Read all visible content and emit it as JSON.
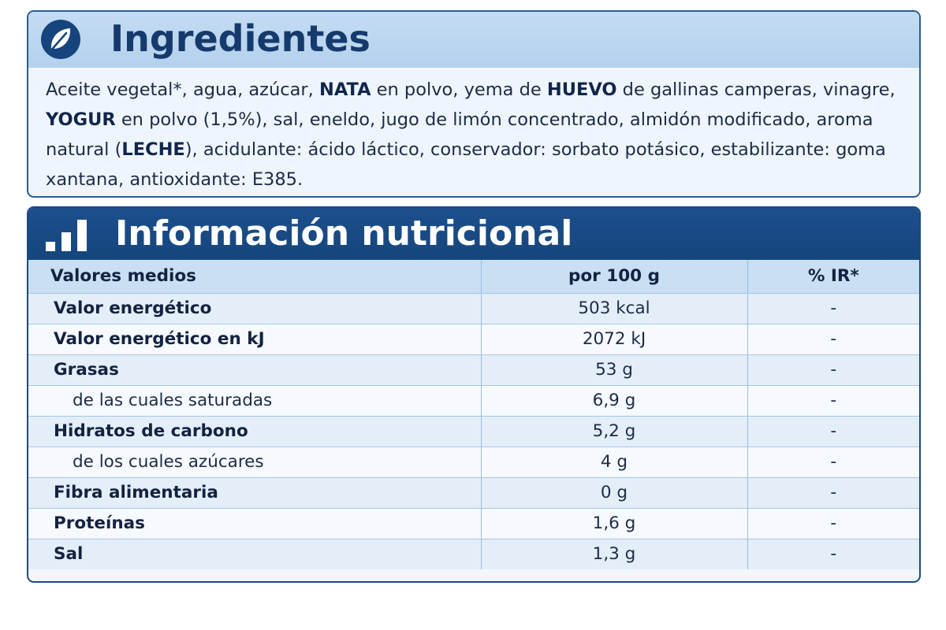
{
  "ingredients": {
    "title": "Ingredientes",
    "icon": "leaf-icon",
    "text_parts": [
      {
        "text": "Aceite vegetal*, agua, azúcar, ",
        "bold": false
      },
      {
        "text": "NATA",
        "bold": true
      },
      {
        "text": " en polvo, yema de ",
        "bold": false
      },
      {
        "text": "HUEVO",
        "bold": true
      },
      {
        "text": " de gallinas camperas, vinagre, ",
        "bold": false
      },
      {
        "text": "YOGUR",
        "bold": true
      },
      {
        "text": " en polvo (1,5%), sal, eneldo, jugo de limón concentrado, almidón modificado, aroma natural (",
        "bold": false
      },
      {
        "text": "LECHE",
        "bold": true
      },
      {
        "text": "), acidulante: ácido láctico, conservador: sorbato potásico, estabilizante: goma xantana, antioxidante: E385.",
        "bold": false
      }
    ]
  },
  "nutrition": {
    "title": "Información nutricional",
    "icon": "bar-chart-icon",
    "headers": [
      "Valores medios",
      "por 100 g",
      "% IR*"
    ],
    "rows": [
      {
        "label": "Valor energético",
        "value": "503 kcal",
        "ir": "-",
        "sub": false
      },
      {
        "label": "Valor energético en kJ",
        "value": "2072 kJ",
        "ir": "-",
        "sub": false
      },
      {
        "label": "Grasas",
        "value": "53 g",
        "ir": "-",
        "sub": false
      },
      {
        "label": "de las cuales saturadas",
        "value": "6,9 g",
        "ir": "-",
        "sub": true
      },
      {
        "label": "Hidratos de carbono",
        "value": "5,2 g",
        "ir": "-",
        "sub": false
      },
      {
        "label": "de los cuales azúcares",
        "value": "4 g",
        "ir": "-",
        "sub": true
      },
      {
        "label": "Fibra alimentaria",
        "value": "0 g",
        "ir": "-",
        "sub": false
      },
      {
        "label": "Proteínas",
        "value": "1,6 g",
        "ir": "-",
        "sub": false
      },
      {
        "label": "Sal",
        "value": "1,3 g",
        "ir": "-",
        "sub": false
      }
    ]
  },
  "colors": {
    "dark_blue": "#16457d",
    "light_blue": "#c4dcf2",
    "row_odd": "#e3eef9",
    "row_even": "#f6f9fd"
  }
}
